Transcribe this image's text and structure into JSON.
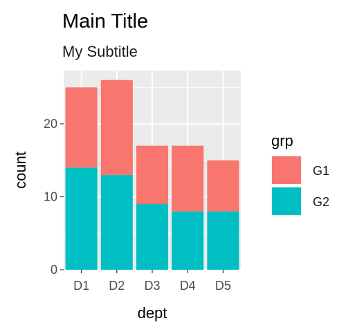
{
  "chart_data": {
    "type": "bar",
    "stacked": true,
    "title": "Main Title",
    "subtitle": "My Subtitle",
    "xlabel": "dept",
    "ylabel": "count",
    "categories": [
      "D1",
      "D2",
      "D3",
      "D4",
      "D5"
    ],
    "series": [
      {
        "name": "G1",
        "values": [
          11,
          13,
          8,
          9,
          7
        ],
        "color": "#F8766D"
      },
      {
        "name": "G2",
        "values": [
          14,
          13,
          9,
          8,
          8
        ],
        "color": "#00BFC4"
      }
    ],
    "ylim": [
      0,
      27.3
    ],
    "yticks": [
      0,
      10,
      20
    ],
    "grid": true,
    "panel_background": "#EBEBEB",
    "grid_color": "#FFFFFF",
    "legend": {
      "title": "grp",
      "position": "right"
    }
  }
}
